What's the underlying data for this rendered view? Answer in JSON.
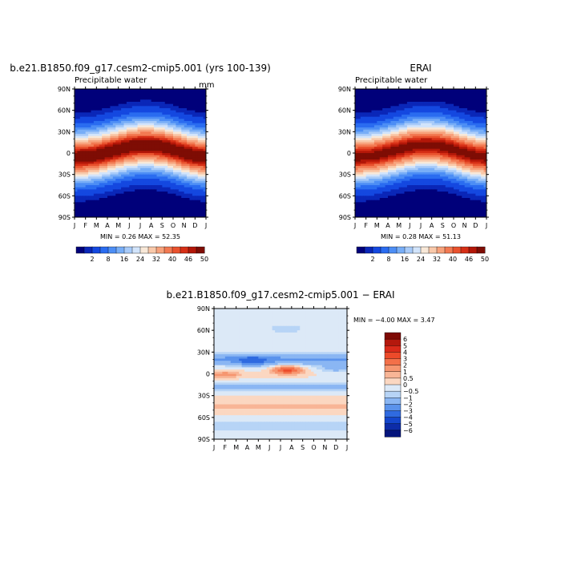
{
  "chart_data": [
    {
      "type": "heatmap",
      "title": "b.e21.B1850.f09_g17.cesm2-cmip5.001 (yrs 100-139)",
      "subtitle": "Precipitable water",
      "units": "mm",
      "x_ticks": [
        "J",
        "F",
        "M",
        "A",
        "M",
        "J",
        "J",
        "A",
        "S",
        "O",
        "N",
        "D",
        "J"
      ],
      "y_ticks": [
        "90S",
        "60S",
        "30S",
        "0",
        "30N",
        "60N",
        "90N"
      ],
      "y_range": [
        -90,
        90
      ],
      "stats": "MIN =    0.26  MAX =   52.35",
      "min": 0.26,
      "max": 52.35,
      "peak_lat_by_month": [
        -6,
        -5,
        -3,
        1,
        5,
        9,
        11,
        11,
        9,
        5,
        0,
        -4,
        -6
      ],
      "equator_width_deg": 24
    },
    {
      "type": "heatmap",
      "title": "ERAI",
      "subtitle": "Precipitable water",
      "units": "",
      "x_ticks": [
        "J",
        "F",
        "M",
        "A",
        "M",
        "J",
        "J",
        "A",
        "S",
        "O",
        "N",
        "D",
        "J"
      ],
      "y_ticks": [
        "90S",
        "60S",
        "30S",
        "0",
        "30N",
        "60N",
        "90N"
      ],
      "y_range": [
        -90,
        90
      ],
      "stats": "MIN =    0.28  MAX =   51.13",
      "min": 0.28,
      "max": 51.13,
      "peak_lat_by_month": [
        -6,
        -5,
        -3,
        1,
        5,
        9,
        11,
        11,
        9,
        5,
        0,
        -4,
        -6
      ],
      "equator_width_deg": 24
    },
    {
      "type": "heatmap",
      "title": "b.e21.B1850.f09_g17.cesm2-cmip5.001 − ERAI",
      "subtitle": "",
      "x_ticks": [
        "J",
        "F",
        "M",
        "A",
        "M",
        "J",
        "J",
        "A",
        "S",
        "O",
        "N",
        "D",
        "J"
      ],
      "y_ticks": [
        "90S",
        "60S",
        "30S",
        "0",
        "30N",
        "60N",
        "90N"
      ],
      "y_range": [
        -90,
        90
      ],
      "stats": "MIN =   −4.00  MAX =    3.47",
      "min": -4.0,
      "max": 3.47
    }
  ],
  "colorbars": {
    "abs": {
      "labels": [
        "2",
        "8",
        "16",
        "24",
        "32",
        "40",
        "46",
        "50"
      ],
      "colors": [
        "#00007a",
        "#0a27b8",
        "#1448e0",
        "#2a6cf0",
        "#4d8ef5",
        "#78aef7",
        "#a8cbf9",
        "#d2e4fb",
        "#f8e8d8",
        "#f9c9aa",
        "#f7a27c",
        "#f27a52",
        "#e9522e",
        "#d62f16",
        "#b31708",
        "#7e0d04"
      ]
    },
    "diff": {
      "labels": [
        "6",
        "5",
        "4",
        "3",
        "2",
        "1",
        "0.5",
        "0",
        "−0.5",
        "−1",
        "−2",
        "−3",
        "−4",
        "−5",
        "−6"
      ],
      "colors": [
        "#7e0a05",
        "#b4180d",
        "#d92a1a",
        "#ec4a2a",
        "#f37049",
        "#f69670",
        "#f8b596",
        "#fbd7c1",
        "#dce9f7",
        "#b7d4f6",
        "#8ab6f3",
        "#5b93ec",
        "#2f6ae0",
        "#1446cc",
        "#0d2ca8",
        "#05157c"
      ]
    }
  }
}
